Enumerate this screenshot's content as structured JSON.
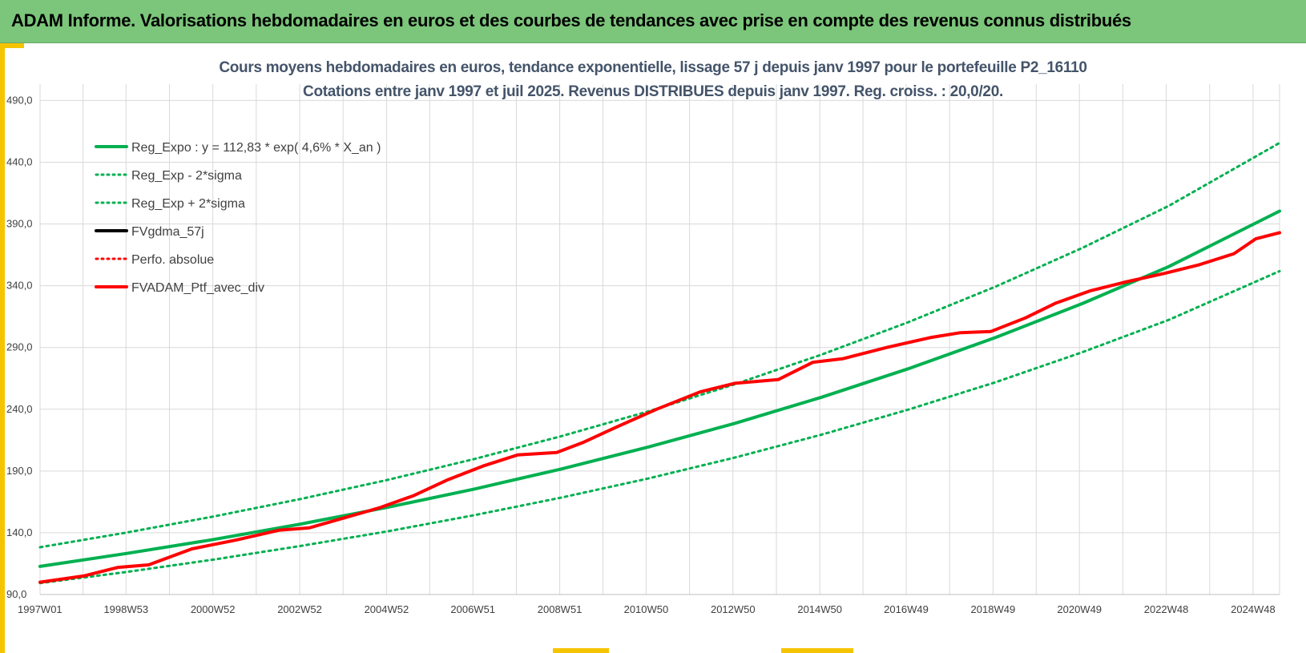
{
  "banner": {
    "title": "ADAM Informe. Valorisations hebdomadaires en euros et des courbes de tendances avec prise en compte des revenus connus distribués"
  },
  "colors": {
    "banner_bg": "#7bc67a",
    "accent": "#f5c400",
    "title_text": "#44546a",
    "reg_expo": "#00b050",
    "reg_band": "#00b050",
    "fvgdma": "#000000",
    "perfo": "#ff0000",
    "ptf": "#ff0000",
    "grid": "#d9d9d9"
  },
  "chart_data": {
    "type": "line",
    "title": "Cours moyens hebdomadaires  en euros, tendance exponentielle, lissage 57 j depuis janv 1997 pour le portefeuille P2_16110",
    "subtitle": "Cotations entre janv 1997 et juil 2025. Revenus DISTRIBUES depuis janv 1997. Reg. croiss. : 20,0/20.",
    "xlabel": "",
    "ylabel": "",
    "x_range_years": [
      1997.0,
      2025.55
    ],
    "ylim": [
      90,
      500
    ],
    "grid": true,
    "legend_position": "top-left",
    "x_ticks": [
      {
        "year": 1997.0,
        "label": "1997W01"
      },
      {
        "year": 1998.98,
        "label": "1998W53"
      },
      {
        "year": 2000.98,
        "label": "2000W52"
      },
      {
        "year": 2002.98,
        "label": "2002W52"
      },
      {
        "year": 2004.98,
        "label": "2004W52"
      },
      {
        "year": 2006.97,
        "label": "2006W51"
      },
      {
        "year": 2008.97,
        "label": "2008W51"
      },
      {
        "year": 2010.96,
        "label": "2010W50"
      },
      {
        "year": 2012.96,
        "label": "2012W50"
      },
      {
        "year": 2014.96,
        "label": "2014W50"
      },
      {
        "year": 2016.95,
        "label": "2016W49"
      },
      {
        "year": 2018.95,
        "label": "2018W49"
      },
      {
        "year": 2020.94,
        "label": "2020W49"
      },
      {
        "year": 2022.94,
        "label": "2022W48"
      },
      {
        "year": 2024.94,
        "label": "2024W48"
      }
    ],
    "y_ticks": [
      {
        "value": 90,
        "label": "90,0"
      },
      {
        "value": 140,
        "label": "140,0"
      },
      {
        "value": 190,
        "label": "190,0"
      },
      {
        "value": 240,
        "label": "240,0"
      },
      {
        "value": 290,
        "label": "290,0"
      },
      {
        "value": 340,
        "label": "340,0"
      },
      {
        "value": 390,
        "label": "390,0"
      },
      {
        "value": 440,
        "label": "440,0"
      },
      {
        "value": 490,
        "label": "490,0"
      }
    ],
    "series": [
      {
        "name": "Reg_Expo : y = 112,83 * exp( 4,6% *  X_an )",
        "style": "solid",
        "color": "#00b050",
        "width": 4,
        "x": [
          1997.0,
          1999.0,
          2001.0,
          2003.0,
          2005.0,
          2007.0,
          2009.0,
          2011.0,
          2013.0,
          2015.0,
          2017.0,
          2019.0,
          2021.0,
          2023.0,
          2025.55
        ],
        "y": [
          112.8,
          123.3,
          134.6,
          147.0,
          160.6,
          175.4,
          191.6,
          209.3,
          228.6,
          249.7,
          272.8,
          298.0,
          325.5,
          355.5,
          400.4
        ]
      },
      {
        "name": "Reg_Exp - 2*sigma",
        "style": "dotted",
        "color": "#00b050",
        "width": 3,
        "x": [
          1997.0,
          1999.0,
          2001.0,
          2003.0,
          2005.0,
          2007.0,
          2009.0,
          2011.0,
          2013.0,
          2015.0,
          2017.0,
          2019.0,
          2021.0,
          2023.0,
          2025.55
        ],
        "y": [
          99.2,
          108.3,
          118.3,
          129.3,
          141.1,
          154.2,
          168.4,
          183.9,
          200.9,
          219.4,
          239.7,
          261.8,
          286.1,
          312.4,
          351.8
        ]
      },
      {
        "name": "Reg_Exp + 2*sigma",
        "style": "dotted",
        "color": "#00b050",
        "width": 3,
        "x": [
          1997.0,
          1999.0,
          2001.0,
          2003.0,
          2005.0,
          2007.0,
          2009.0,
          2011.0,
          2013.0,
          2015.0,
          2017.0,
          2019.0,
          2021.0,
          2023.0,
          2025.55
        ],
        "y": [
          128.3,
          140.2,
          153.2,
          167.3,
          182.8,
          199.7,
          218.1,
          238.2,
          260.2,
          284.2,
          310.5,
          339.2,
          370.5,
          404.7,
          455.6
        ]
      },
      {
        "name": "FVgdma_57j",
        "style": "solid",
        "color": "#000000",
        "width": 3,
        "x": [
          1997.0,
          1998.0,
          1998.8,
          1999.5,
          2000.5,
          2001.5,
          2002.5,
          2003.2,
          2004.0,
          2004.8,
          2005.6,
          2006.4,
          2007.2,
          2008.0,
          2008.9,
          2009.5,
          2010.3,
          2011.2,
          2012.2,
          2013.0,
          2014.0,
          2014.8,
          2015.5,
          2016.5,
          2017.5,
          2018.2,
          2018.9,
          2019.7,
          2020.4,
          2021.2,
          2022.0,
          2022.9,
          2023.7,
          2024.5,
          2025.0,
          2025.55
        ],
        "y": [
          100,
          105,
          112,
          114,
          127,
          134,
          142,
          144,
          152,
          160,
          170,
          183,
          194,
          203,
          205,
          213,
          226,
          240,
          254,
          261,
          264,
          278,
          281,
          290,
          298,
          302,
          303,
          314,
          326,
          336,
          343,
          350,
          357,
          366,
          378,
          383
        ]
      },
      {
        "name": "Perfo. absolue",
        "style": "dotted",
        "color": "#ff0000",
        "width": 3,
        "x": [],
        "y": []
      },
      {
        "name": "FVADAM_Ptf_avec_div",
        "style": "solid",
        "color": "#ff0000",
        "width": 4,
        "x": [
          1997.0,
          1998.0,
          1998.8,
          1999.5,
          2000.5,
          2001.5,
          2002.5,
          2003.2,
          2004.0,
          2004.8,
          2005.6,
          2006.4,
          2007.2,
          2008.0,
          2008.9,
          2009.5,
          2010.3,
          2011.2,
          2012.2,
          2013.0,
          2014.0,
          2014.8,
          2015.5,
          2016.5,
          2017.5,
          2018.2,
          2018.9,
          2019.7,
          2020.4,
          2021.2,
          2022.0,
          2022.9,
          2023.7,
          2024.5,
          2025.0,
          2025.55
        ],
        "y": [
          100,
          105,
          112,
          114,
          127,
          134,
          142,
          144,
          152,
          160,
          170,
          183,
          194,
          203,
          205,
          213,
          226,
          240,
          254,
          261,
          264,
          278,
          281,
          290,
          298,
          302,
          303,
          314,
          326,
          336,
          343,
          350,
          357,
          366,
          378,
          383
        ]
      }
    ]
  }
}
